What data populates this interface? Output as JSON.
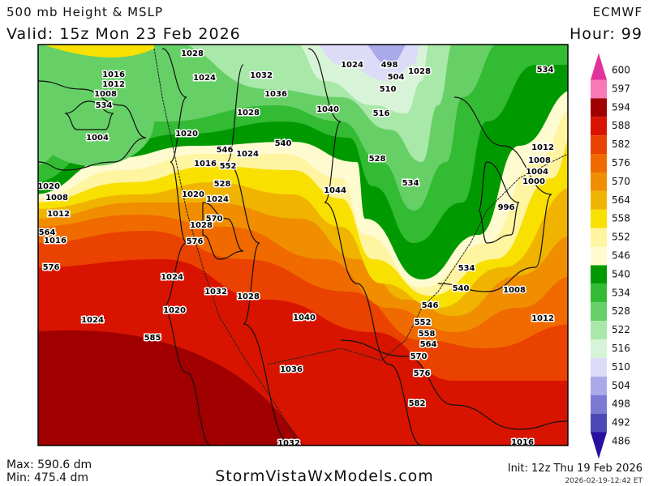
{
  "header": {
    "title": "500 mb Height & MSLP",
    "valid": "Valid: 15z Mon 23 Feb 2026",
    "model": "ECMWF",
    "hour": "Hour: 99"
  },
  "footer": {
    "max": "Max: 590.6 dm",
    "min": "Min: 475.4 dm",
    "site": "StormVistaWxModels.com",
    "init": "Init: 12z Thu 19 Feb 2026",
    "stamp": "2026-02-19-12:42 ET"
  },
  "colorbar": {
    "labels": [
      600,
      597,
      594,
      588,
      582,
      576,
      570,
      564,
      558,
      552,
      546,
      540,
      534,
      528,
      522,
      516,
      510,
      504,
      498,
      492,
      486
    ],
    "colors": [
      "#e0339d",
      "#f878b8",
      "#a00000",
      "#d81400",
      "#ea4200",
      "#f06a00",
      "#f08e00",
      "#f0b400",
      "#f8e000",
      "#fff4a0",
      "#fffbd0",
      "#009a00",
      "#33bb33",
      "#66d066",
      "#a8e8a8",
      "#d8f4d8",
      "#dcdcf8",
      "#aaaaea",
      "#7a7ad4",
      "#4a4ab6",
      "#2a10a0"
    ]
  },
  "map_labels": [
    "1028",
    "1024",
    "1016",
    "1012",
    "1008",
    "534",
    "1004",
    "1020",
    "1016",
    "546",
    "552",
    "1024",
    "1020",
    "528",
    "1028",
    "576",
    "570",
    "1024",
    "1032",
    "1028",
    "1040",
    "1020",
    "585",
    "1036",
    "1024",
    "1020",
    "1032",
    "1028",
    "1036",
    "1040",
    "540",
    "1044",
    "528",
    "534",
    "510",
    "516",
    "504",
    "498",
    "1028",
    "1024",
    "1012",
    "1008",
    "1004",
    "1000",
    "996",
    "534",
    "540",
    "1008",
    "1012",
    "546",
    "552",
    "558",
    "564",
    "570",
    "576",
    "582",
    "1016",
    "576",
    "1016",
    "1012",
    "1008",
    "564",
    "1032",
    "1024",
    "534"
  ]
}
